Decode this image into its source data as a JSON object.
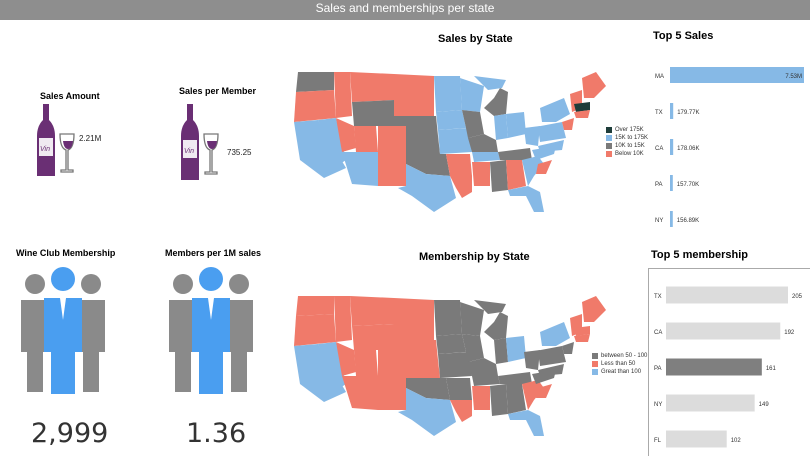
{
  "header": {
    "title": "Sales and memberships per state"
  },
  "kpis": {
    "sales_amount": {
      "label": "Sales Amount",
      "value": "2.21M"
    },
    "sales_per_member": {
      "label": "Sales per Member",
      "value": "735.25"
    },
    "club_membership": {
      "label": "Wine Club Membership",
      "value": "2,999"
    },
    "members_per_1m": {
      "label": "Members per 1M sales",
      "value": "1.36"
    }
  },
  "colors": {
    "salmon": "#f07a6a",
    "light_blue": "#86b9e6",
    "gray": "#7a7a7a",
    "dark_green": "#1e3d3a",
    "wine": "#6a2f74",
    "person_blue": "#4a9ef0",
    "person_gray": "#8a8a8a",
    "bar_light": "#dcdcdc",
    "bar_dark": "#7f7f7f"
  },
  "maps": {
    "sales": {
      "title": "Sales by State",
      "legend": [
        {
          "label": "Over 175K",
          "color": "#1e3d3a"
        },
        {
          "label": "15K to 175K",
          "color": "#86b9e6"
        },
        {
          "label": "10K to 15K",
          "color": "#7a7a7a"
        },
        {
          "label": "Below 10K",
          "color": "#f07a6a"
        }
      ]
    },
    "membership": {
      "title": "Membership by State",
      "legend": [
        {
          "label": "between 50 - 100",
          "color": "#7a7a7a"
        },
        {
          "label": "Less than 50",
          "color": "#f07a6a"
        },
        {
          "label": "Great than 100",
          "color": "#86b9e6"
        }
      ]
    }
  },
  "chart_data": [
    {
      "type": "bar",
      "title": "Top 5 Sales",
      "orientation": "horizontal",
      "categories": [
        "MA",
        "TX",
        "CA",
        "PA",
        "NY"
      ],
      "values": [
        7.53,
        0.17977,
        0.17806,
        0.1577,
        0.15689
      ],
      "value_labels": [
        "7.53M",
        "179.77K",
        "178.06K",
        "157.70K",
        "156.89K"
      ],
      "bar_colors": [
        "#86b9e6",
        "#86b9e6",
        "#86b9e6",
        "#86b9e6",
        "#86b9e6"
      ],
      "xlim": [
        0,
        7.53
      ]
    },
    {
      "type": "bar",
      "title": "Top 5 membership",
      "orientation": "horizontal",
      "categories": [
        "TX",
        "CA",
        "PA",
        "NY",
        "FL"
      ],
      "values": [
        205,
        192,
        161,
        149,
        102
      ],
      "value_labels": [
        "205",
        "192",
        "161",
        "149",
        "102"
      ],
      "bar_colors": [
        "#dcdcdc",
        "#dcdcdc",
        "#7f7f7f",
        "#dcdcdc",
        "#dcdcdc"
      ],
      "xlim": [
        0,
        205
      ]
    }
  ]
}
